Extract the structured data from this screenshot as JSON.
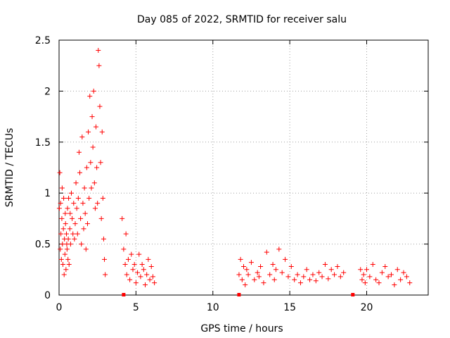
{
  "chart_data": {
    "type": "scatter",
    "title": "Day 085 of 2022, SRMTID for receiver salu",
    "xlabel": "GPS time / hours",
    "ylabel": "SRMTID / TECUs",
    "xlim": [
      0,
      24
    ],
    "ylim": [
      0,
      2.5
    ],
    "x_ticks": [
      0,
      5,
      10,
      15,
      20
    ],
    "x_tick_labels": [
      "0",
      "5",
      "10",
      "15",
      "20"
    ],
    "y_ticks": [
      0,
      0.5,
      1,
      1.5,
      2,
      2.5
    ],
    "y_tick_labels": [
      "0",
      "0.5",
      "1",
      "1.5",
      "2",
      "2.5"
    ],
    "grid": true,
    "marker": "+",
    "series": [
      {
        "name": "SRMTID",
        "color": "#ff0000",
        "x": [
          0.02,
          0.05,
          0.08,
          0.1,
          0.12,
          0.15,
          0.18,
          0.2,
          0.22,
          0.25,
          0.28,
          0.3,
          0.33,
          0.35,
          0.38,
          0.4,
          0.42,
          0.45,
          0.48,
          0.5,
          0.52,
          0.55,
          0.58,
          0.6,
          0.62,
          0.65,
          0.7,
          0.72,
          0.75,
          0.8,
          0.85,
          0.9,
          0.95,
          1.0,
          1.05,
          1.1,
          1.15,
          1.2,
          1.25,
          1.3,
          1.35,
          1.4,
          1.45,
          1.5,
          1.55,
          1.6,
          1.65,
          1.7,
          1.75,
          1.8,
          1.85,
          1.9,
          1.95,
          2.0,
          2.05,
          2.1,
          2.15,
          2.2,
          2.25,
          2.3,
          2.35,
          2.4,
          2.45,
          2.5,
          2.55,
          2.6,
          2.65,
          2.7,
          2.75,
          2.8,
          2.85,
          2.9,
          2.95,
          3.0,
          4.1,
          4.2,
          4.3,
          4.35,
          4.4,
          4.5,
          4.6,
          4.7,
          4.8,
          4.9,
          5.0,
          5.1,
          5.2,
          5.3,
          5.4,
          5.5,
          5.6,
          5.7,
          5.8,
          5.9,
          6.0,
          6.1,
          6.2,
          11.7,
          11.8,
          11.9,
          12.0,
          12.1,
          12.2,
          12.3,
          12.5,
          12.7,
          12.9,
          13.0,
          13.1,
          13.3,
          13.5,
          13.7,
          13.9,
          14.0,
          14.1,
          14.3,
          14.5,
          14.7,
          14.9,
          15.1,
          15.3,
          15.5,
          15.7,
          15.9,
          16.1,
          16.3,
          16.5,
          16.7,
          16.9,
          17.1,
          17.3,
          17.5,
          17.7,
          17.9,
          18.1,
          18.3,
          18.5,
          19.6,
          19.7,
          19.8,
          19.9,
          20.0,
          20.2,
          20.4,
          20.6,
          20.8,
          21.0,
          21.2,
          21.4,
          21.6,
          21.8,
          22.0,
          22.2,
          22.4,
          22.6,
          22.8
        ],
        "y": [
          0.85,
          1.2,
          0.45,
          0.9,
          0.6,
          0.35,
          0.75,
          1.05,
          0.5,
          0.3,
          0.65,
          0.95,
          0.2,
          0.55,
          0.4,
          0.8,
          0.7,
          0.25,
          0.6,
          0.5,
          0.45,
          0.85,
          0.35,
          0.55,
          0.95,
          0.3,
          0.65,
          0.8,
          0.5,
          1.0,
          0.75,
          0.6,
          0.9,
          0.55,
          0.7,
          1.1,
          0.85,
          0.6,
          0.95,
          1.4,
          1.2,
          0.75,
          0.5,
          1.55,
          0.9,
          0.65,
          1.05,
          0.8,
          0.45,
          1.25,
          0.7,
          1.6,
          0.95,
          1.95,
          1.3,
          1.05,
          1.75,
          1.45,
          2.0,
          1.1,
          0.85,
          1.65,
          1.25,
          0.9,
          2.4,
          2.25,
          1.85,
          1.3,
          0.75,
          1.6,
          0.95,
          0.55,
          0.35,
          0.2,
          0.75,
          0.45,
          0.3,
          0.6,
          0.2,
          0.35,
          0.15,
          0.4,
          0.25,
          0.3,
          0.12,
          0.22,
          0.4,
          0.18,
          0.3,
          0.25,
          0.1,
          0.2,
          0.35,
          0.15,
          0.28,
          0.18,
          0.12,
          0.2,
          0.35,
          0.15,
          0.28,
          0.1,
          0.25,
          0.2,
          0.32,
          0.15,
          0.22,
          0.18,
          0.28,
          0.12,
          0.42,
          0.2,
          0.3,
          0.15,
          0.25,
          0.45,
          0.22,
          0.35,
          0.18,
          0.28,
          0.15,
          0.2,
          0.12,
          0.18,
          0.25,
          0.15,
          0.2,
          0.14,
          0.22,
          0.18,
          0.3,
          0.16,
          0.25,
          0.2,
          0.28,
          0.18,
          0.22,
          0.25,
          0.15,
          0.2,
          0.12,
          0.25,
          0.18,
          0.3,
          0.15,
          0.12,
          0.22,
          0.28,
          0.18,
          0.2,
          0.1,
          0.25,
          0.15,
          0.22,
          0.18,
          0.12
        ]
      }
    ],
    "baseline_markers": {
      "color": "#ff0000",
      "x": [
        4.2,
        11.7,
        19.1
      ],
      "y": [
        0,
        0,
        0
      ]
    }
  }
}
